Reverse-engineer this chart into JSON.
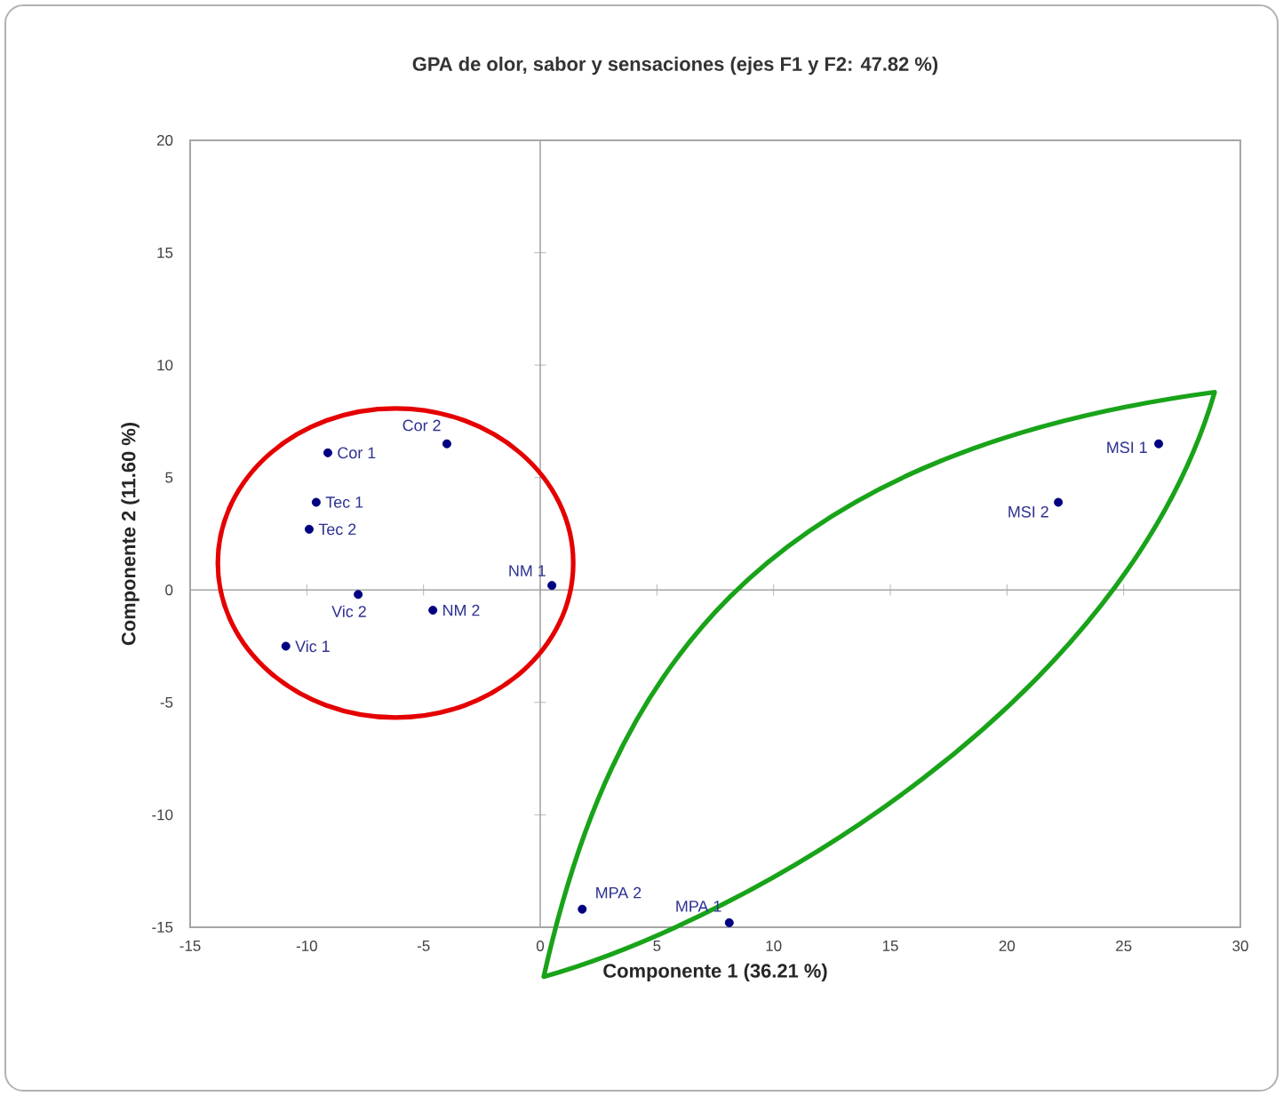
{
  "chart_data": {
    "type": "scatter",
    "title": "GPA de olor, sabor y sensaciones  (ejes F1 y F2: 47.82 %)",
    "xlabel": "Componente 1 (36.21 %)",
    "ylabel": "Componente 2 (11.60 %)",
    "x": [
      -9.1,
      -4.0,
      -9.6,
      -9.9,
      -7.8,
      -10.9,
      -4.6,
      0.5,
      26.5,
      22.2,
      1.8,
      8.1
    ],
    "values": [
      6.1,
      6.5,
      3.9,
      2.7,
      -0.2,
      -2.5,
      -0.9,
      0.2,
      6.5,
      3.9,
      -14.2,
      -14.8
    ],
    "color": "#000080",
    "marker": "circle",
    "xlim": [
      -15,
      30
    ],
    "ylim": [
      -15,
      20
    ],
    "xticks": [
      -15,
      -10,
      -5,
      0,
      5,
      10,
      15,
      20,
      25,
      30
    ],
    "yticks": [
      -15,
      -10,
      -5,
      0,
      5,
      10,
      15,
      20
    ],
    "annotations": [
      {
        "text": "Cor 1",
        "x": -9.1,
        "y": 6.1
      },
      {
        "text": "Cor 2",
        "x": -4.0,
        "y": 6.5
      },
      {
        "text": "Tec 1",
        "x": -9.6,
        "y": 3.9
      },
      {
        "text": "Tec 2",
        "x": -9.9,
        "y": 2.7
      },
      {
        "text": "Vic 2",
        "x": -7.8,
        "y": -0.2
      },
      {
        "text": "Vic 1",
        "x": -10.9,
        "y": -2.5
      },
      {
        "text": "NM 2",
        "x": -4.6,
        "y": -0.9
      },
      {
        "text": "NM 1",
        "x": 0.5,
        "y": 0.2
      },
      {
        "text": "MSI 1",
        "x": 26.5,
        "y": 6.5
      },
      {
        "text": "MSI 2",
        "x": 22.2,
        "y": 3.9
      },
      {
        "text": "MPA 2",
        "x": 1.8,
        "y": -14.2
      },
      {
        "text": "MPA 1",
        "x": 8.1,
        "y": -14.8
      }
    ]
  }
}
